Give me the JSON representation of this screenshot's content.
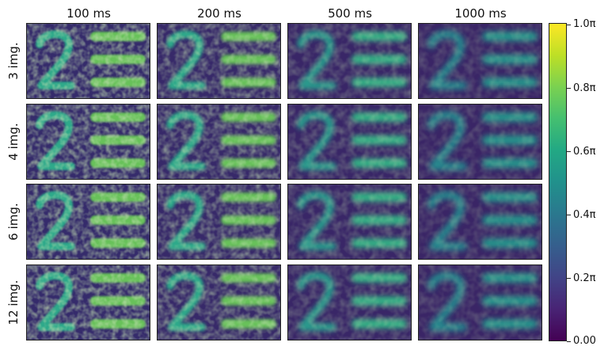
{
  "column_titles": [
    "100 ms",
    "200 ms",
    "500 ms",
    "1000 ms"
  ],
  "row_labels": [
    "3 img.",
    "4 img.",
    "6 img.",
    "12 img."
  ],
  "colorbar": {
    "tick_labels": [
      "0.00",
      "0.2π",
      "0.4π",
      "0.6π",
      "0.8π",
      "1.0π"
    ],
    "colormap": "viridis",
    "range": [
      0,
      1
    ]
  },
  "panel_content": "numeral 2 and three horizontal bars",
  "noise_level_by_column": [
    1.0,
    0.75,
    0.35,
    0.2
  ],
  "colors": {
    "background_low": "#440154",
    "pattern_mid": "#21918c",
    "pattern_high": "#b5de2b"
  }
}
